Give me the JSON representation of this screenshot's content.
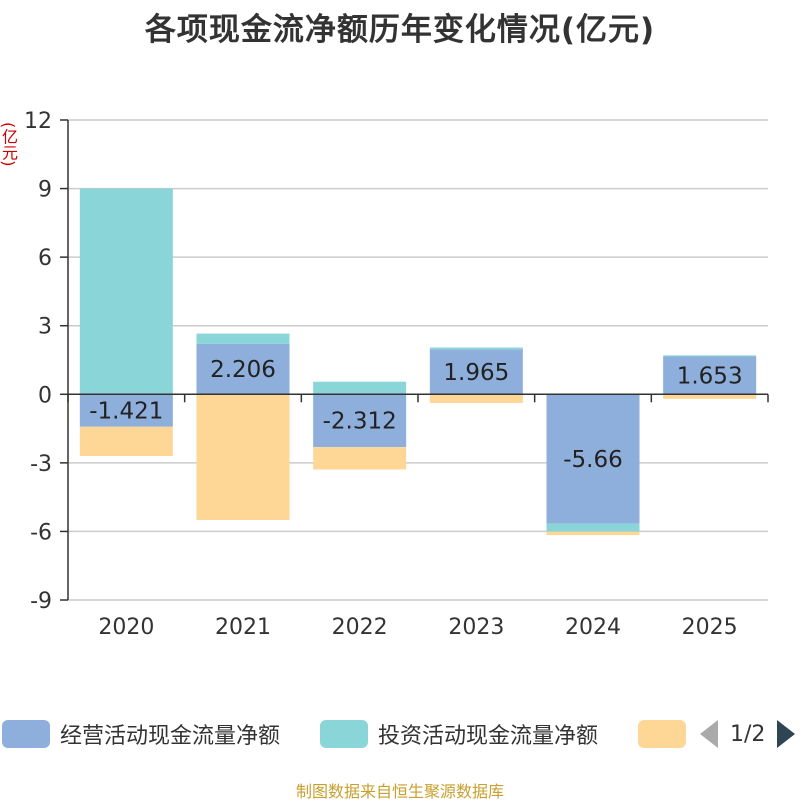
{
  "title": "各项现金流净额历年变化情况(亿元)",
  "unit_label": "(亿元)",
  "source": "制图数据来自恒生聚源数据库",
  "pager": "1/2",
  "chart_data": {
    "type": "bar",
    "stacked": true,
    "categories": [
      "2020",
      "2021",
      "2022",
      "2023",
      "2024",
      "2025"
    ],
    "ylim": [
      -9,
      12
    ],
    "yticks": [
      -9,
      -6,
      -3,
      0,
      3,
      6,
      9,
      12
    ],
    "series": [
      {
        "name": "经营活动现金流量净额",
        "color": "#8eaedb",
        "values": [
          -1.421,
          2.206,
          -2.312,
          1.965,
          -5.66,
          1.653
        ],
        "labels": [
          "-1.421",
          "2.206",
          "-2.312",
          "1.965",
          "-5.66",
          "1.653"
        ]
      },
      {
        "name": "投资活动现金流量净额",
        "color": "#89d5d8",
        "values": [
          9.0,
          0.45,
          0.55,
          0.08,
          -0.35,
          0.05
        ]
      },
      {
        "name": "",
        "color": "#fed797",
        "values": [
          -1.28,
          -5.5,
          -0.98,
          -0.38,
          -0.15,
          -0.2
        ]
      }
    ],
    "legend_position": "bottom"
  }
}
